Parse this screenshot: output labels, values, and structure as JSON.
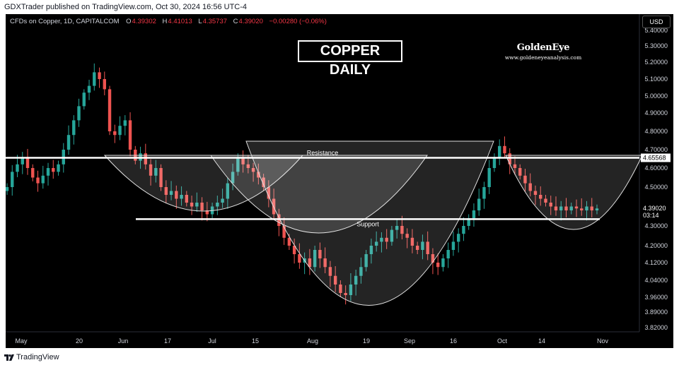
{
  "header": {
    "published_by": "GDXTrader published on TradingView.com, Oct 30, 2024 16:56 UTC-4"
  },
  "symbol": {
    "name": "CFDs on Copper, 1D, CAPITALCOM",
    "open_label": "O",
    "open": "4.39302",
    "high_label": "H",
    "high": "4.41013",
    "low_label": "L",
    "low": "4.35737",
    "close_label": "C",
    "close": "4.39020",
    "change": "−0.00280 (−0.06%)"
  },
  "currency_button": "USD",
  "footer": {
    "brand": "TradingView"
  },
  "logo": {
    "name": "GoldenEye",
    "url": "www.goldeneyeanalysis.com"
  },
  "colors": {
    "background": "#000000",
    "up": "#26a69a",
    "down": "#ef5350",
    "lines": "#ffffff",
    "axis_text": "#d1d4dc"
  },
  "chart_data": {
    "type": "candlestick",
    "title": "COPPER DAILY",
    "price_axis_ticks": [
      "5.40000",
      "5.30000",
      "5.20000",
      "5.10000",
      "5.00000",
      "4.90000",
      "4.80000",
      "4.70000",
      "4.60000",
      "4.50000",
      "4.30000",
      "4.20000",
      "4.12000",
      "4.04000",
      "3.96000",
      "3.89000",
      "3.82000"
    ],
    "price_axis_values": [
      5.4,
      5.3,
      5.2,
      5.1,
      5.0,
      4.9,
      4.8,
      4.7,
      4.6,
      4.5,
      4.3,
      4.2,
      4.12,
      4.04,
      3.96,
      3.89,
      3.82
    ],
    "time_axis_ticks": [
      "May",
      "20",
      "Jun",
      "17",
      "Jul",
      "15",
      "Aug",
      "19",
      "Sep",
      "16",
      "Oct",
      "14",
      "Nov"
    ],
    "price_labels": [
      {
        "text": "4.65568",
        "value": 4.65568,
        "style": "resistance"
      },
      {
        "text": "4.39020",
        "value": 4.3902,
        "style": "last"
      },
      {
        "text": "03:14",
        "value": 4.3902,
        "style": "countdown"
      }
    ],
    "annotations": [
      {
        "text": "Resistance",
        "value": 4.65568
      },
      {
        "text": "Support",
        "value": 4.335
      }
    ],
    "resistance_level": 4.65568,
    "support_level": 4.335,
    "close_series_approx": [
      4.5,
      4.58,
      4.62,
      4.66,
      4.6,
      4.55,
      4.52,
      4.56,
      4.6,
      4.58,
      4.62,
      4.7,
      4.78,
      4.86,
      4.94,
      5.02,
      5.06,
      5.14,
      5.1,
      5.04,
      4.8,
      4.78,
      4.83,
      4.86,
      4.7,
      4.64,
      4.68,
      4.62,
      4.56,
      4.6,
      4.5,
      4.46,
      4.48,
      4.44,
      4.46,
      4.42,
      4.4,
      4.42,
      4.38,
      4.36,
      4.4,
      4.42,
      4.44,
      4.52,
      4.58,
      4.66,
      4.62,
      4.6,
      4.58,
      4.55,
      4.5,
      4.44,
      4.36,
      4.3,
      4.24,
      4.2,
      4.16,
      4.12,
      4.14,
      4.1,
      4.18,
      4.14,
      4.1,
      4.06,
      4.02,
      3.98,
      3.97,
      4.02,
      4.06,
      4.1,
      4.16,
      4.2,
      4.22,
      4.24,
      4.22,
      4.28,
      4.3,
      4.26,
      4.24,
      4.2,
      4.18,
      4.22,
      4.16,
      4.12,
      4.1,
      4.14,
      4.18,
      4.22,
      4.26,
      4.3,
      4.34,
      4.38,
      4.44,
      4.5,
      4.6,
      4.66,
      4.72,
      4.68,
      4.62,
      4.6,
      4.56,
      4.52,
      4.48,
      4.46,
      4.44,
      4.42,
      4.4,
      4.38,
      4.4,
      4.38,
      4.4,
      4.39,
      4.38,
      4.4,
      4.38,
      4.39
    ]
  }
}
